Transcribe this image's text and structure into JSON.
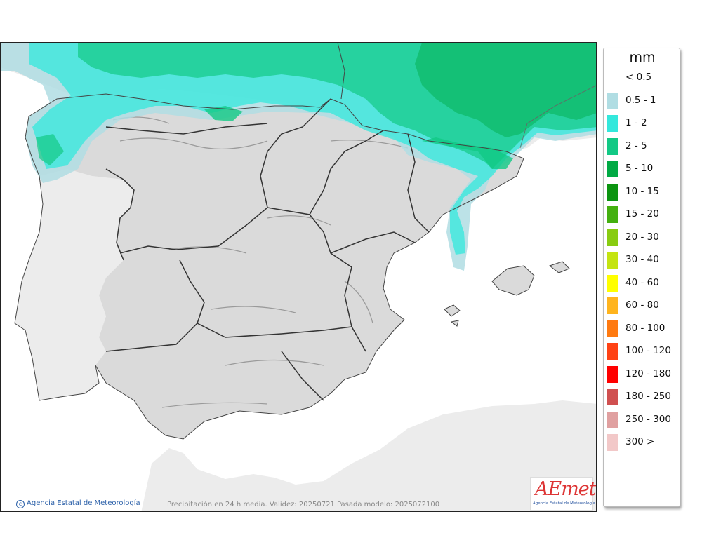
{
  "legend": {
    "unit": "mm",
    "items": [
      {
        "label": "< 0.5",
        "color": "#ffffff"
      },
      {
        "label": "0.5 - 1",
        "color": "#b0dde3"
      },
      {
        "label": "1 - 2",
        "color": "#33e8dc"
      },
      {
        "label": "2 - 5",
        "color": "#12c985"
      },
      {
        "label": "5 - 10",
        "color": "#00aa44"
      },
      {
        "label": "10 - 15",
        "color": "#0b9410"
      },
      {
        "label": "15 - 20",
        "color": "#44b010"
      },
      {
        "label": "20 - 30",
        "color": "#88cc11"
      },
      {
        "label": "30 - 40",
        "color": "#c4e411"
      },
      {
        "label": "40 - 60",
        "color": "#ffff00"
      },
      {
        "label": "60 - 80",
        "color": "#ffb41e"
      },
      {
        "label": "80 - 100",
        "color": "#ff7a10"
      },
      {
        "label": "100 - 120",
        "color": "#ff4214"
      },
      {
        "label": "120 - 180",
        "color": "#ff0000"
      },
      {
        "label": "180 - 250",
        "color": "#d05050"
      },
      {
        "label": "250 - 300",
        "color": "#e0a0a0"
      },
      {
        "label": "300 >",
        "color": "#f2c8c8"
      }
    ]
  },
  "credit": {
    "icon": "copyright-icon",
    "text": "Agencia Estatal de Meteorología"
  },
  "caption": "Precipitación en 24 h media. Validez: 20250721 Pasada modelo: 2025072100",
  "logo": {
    "mark": "AEmet",
    "subtitle": "Agencia Estatal de Meteorología",
    "colors": {
      "primary": "#1f4d9c",
      "accent": "#dd3333"
    }
  },
  "map_colors": {
    "land": "#dadada",
    "foreign_land": "#ececec",
    "sea": "#ffffff",
    "borders": "#333333"
  }
}
